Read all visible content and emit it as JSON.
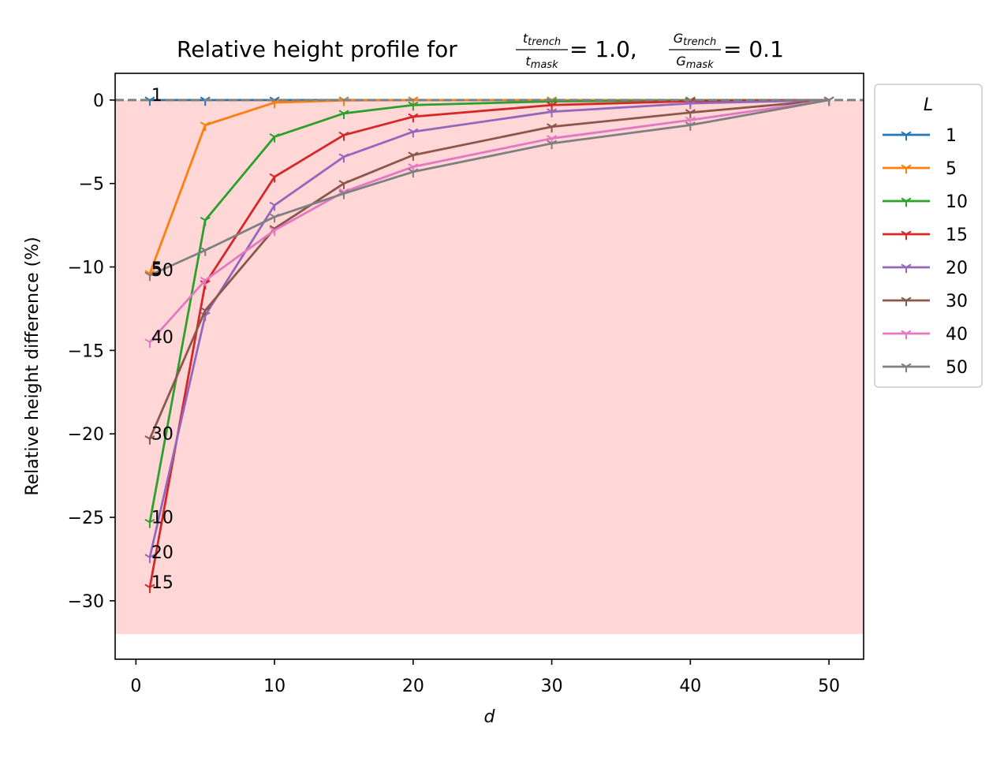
{
  "chart_data": {
    "type": "line",
    "title": {
      "prefix": "Relative height profile for ",
      "frac1_num": "t",
      "frac1_num_sub": "trench",
      "frac1_den": "t",
      "frac1_den_sub": "mask",
      "eq1": " = 1.0, ",
      "frac2_num": "G",
      "frac2_num_sub": "trench",
      "frac2_den": "G",
      "frac2_den_sub": "mask",
      "eq2": " = 0.1"
    },
    "xlabel": "d",
    "ylabel": "Relative height difference (%)",
    "xlim": [
      -1.5,
      52.5
    ],
    "ylim": [
      -33.5,
      1.6
    ],
    "x_ticks": [
      0,
      10,
      20,
      30,
      40,
      50
    ],
    "y_ticks": [
      0,
      -5,
      -10,
      -15,
      -20,
      -25,
      -30
    ],
    "x_tick_labels": [
      "0",
      "10",
      "20",
      "30",
      "40",
      "50"
    ],
    "y_tick_labels": [
      "0",
      "−5",
      "−10",
      "−15",
      "−20",
      "−25",
      "−30"
    ],
    "shaded_region": {
      "y_from": -32,
      "y_to": 0,
      "color": "#ffd7d7"
    },
    "reference_line": {
      "y": 0,
      "style": "dashed",
      "color": "#808080"
    },
    "legend_title": "L",
    "legend_placement": "outside-right-top",
    "x": [
      1,
      5,
      10,
      15,
      20,
      30,
      40,
      50
    ],
    "series": [
      {
        "name": "1",
        "color": "#1f77b4",
        "values": [
          0,
          0,
          0,
          0,
          0,
          0,
          0,
          0
        ]
      },
      {
        "name": "5",
        "color": "#ff7f0e",
        "values": [
          -10.4,
          -1.5,
          -0.15,
          -0.02,
          0,
          0,
          0,
          0
        ]
      },
      {
        "name": "10",
        "color": "#2ca02c",
        "values": [
          -25.3,
          -7.2,
          -2.2,
          -0.8,
          -0.3,
          -0.08,
          -0.02,
          0
        ]
      },
      {
        "name": "15",
        "color": "#d62728",
        "values": [
          -29.2,
          -11.0,
          -4.6,
          -2.1,
          -1.0,
          -0.3,
          -0.07,
          0
        ]
      },
      {
        "name": "20",
        "color": "#9467bd",
        "values": [
          -27.4,
          -12.9,
          -6.3,
          -3.4,
          -1.9,
          -0.7,
          -0.2,
          0
        ]
      },
      {
        "name": "30",
        "color": "#8c564b",
        "values": [
          -20.3,
          -12.6,
          -7.7,
          -5.0,
          -3.3,
          -1.6,
          -0.75,
          0
        ]
      },
      {
        "name": "40",
        "color": "#e377c2",
        "values": [
          -14.5,
          -10.8,
          -7.8,
          -5.5,
          -4.0,
          -2.3,
          -1.2,
          0
        ]
      },
      {
        "name": "50",
        "color": "#7f7f7f",
        "values": [
          -10.5,
          -9.0,
          -7.0,
          -5.6,
          -4.3,
          -2.6,
          -1.5,
          0
        ]
      }
    ],
    "annotations": [
      {
        "text": "1",
        "x": 1,
        "y": 0
      },
      {
        "text": "5",
        "x": 1,
        "y": -10.4
      },
      {
        "text": "50",
        "x": 1,
        "y": -10.5
      },
      {
        "text": "40",
        "x": 1,
        "y": -14.5
      },
      {
        "text": "30",
        "x": 1,
        "y": -20.3
      },
      {
        "text": "10",
        "x": 1,
        "y": -25.3
      },
      {
        "text": "20",
        "x": 1,
        "y": -27.4
      },
      {
        "text": "15",
        "x": 1,
        "y": -29.2
      }
    ]
  }
}
